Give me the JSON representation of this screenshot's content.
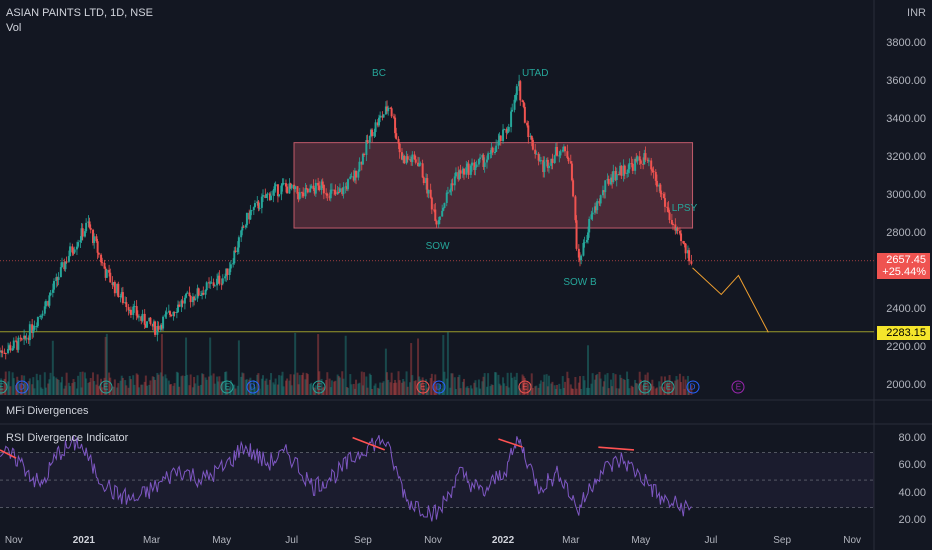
{
  "header": {
    "symbol_line": "ASIAN PAINTS LTD, 1D, NSE",
    "vol_label": "Vol"
  },
  "panes": {
    "mfi_label": "MFi Divergences",
    "rsi_label": "RSI Divergence Indicator"
  },
  "currency": "INR",
  "colors": {
    "up": "#26a69a",
    "down": "#ef5350",
    "rsi_line": "#7e57c2",
    "zone_fill": "#7a3b48",
    "projection": "#f0a030",
    "support": "#9a9a2a"
  },
  "markers": {
    "current_price": "2657.45",
    "current_change": "+25.44%",
    "support_price": "2283.15"
  },
  "chart_data": {
    "type": "candlestick",
    "title": "ASIAN PAINTS LTD, 1D, NSE",
    "ylim": [
      1950,
      3900
    ],
    "price_ticks": [
      "3800.00",
      "3600.00",
      "3400.00",
      "3200.00",
      "3000.00",
      "2800.00",
      "2600.00",
      "2400.00",
      "2200.00",
      "2000.00"
    ],
    "x_ticks": [
      {
        "date": "2020-11-01",
        "label": "Nov",
        "bold": false
      },
      {
        "date": "2021-01-01",
        "label": "2021",
        "bold": true
      },
      {
        "date": "2021-03-01",
        "label": "Mar",
        "bold": false
      },
      {
        "date": "2021-05-01",
        "label": "May",
        "bold": false
      },
      {
        "date": "2021-07-01",
        "label": "Jul",
        "bold": false
      },
      {
        "date": "2021-09-01",
        "label": "Sep",
        "bold": false
      },
      {
        "date": "2021-11-01",
        "label": "Nov",
        "bold": false
      },
      {
        "date": "2022-01-01",
        "label": "2022",
        "bold": true
      },
      {
        "date": "2022-03-01",
        "label": "Mar",
        "bold": false
      },
      {
        "date": "2022-05-01",
        "label": "May",
        "bold": false
      },
      {
        "date": "2022-07-01",
        "label": "Jul",
        "bold": false
      },
      {
        "date": "2022-09-01",
        "label": "Sep",
        "bold": false
      },
      {
        "date": "2022-11-01",
        "label": "Nov",
        "bold": false
      }
    ],
    "x_range": [
      "2020-10-20",
      "2022-11-20"
    ],
    "price_path": [
      [
        "2020-10-20",
        2180
      ],
      [
        "2020-11-10",
        2230
      ],
      [
        "2020-12-01",
        2450
      ],
      [
        "2020-12-20",
        2700
      ],
      [
        "2021-01-05",
        2850
      ],
      [
        "2021-01-20",
        2600
      ],
      [
        "2021-02-05",
        2450
      ],
      [
        "2021-02-20",
        2350
      ],
      [
        "2021-03-05",
        2300
      ],
      [
        "2021-03-25",
        2430
      ],
      [
        "2021-04-15",
        2500
      ],
      [
        "2021-05-05",
        2580
      ],
      [
        "2021-05-25",
        2900
      ],
      [
        "2021-06-10",
        3000
      ],
      [
        "2021-06-25",
        3050
      ],
      [
        "2021-07-10",
        3000
      ],
      [
        "2021-07-25",
        3050
      ],
      [
        "2021-08-10",
        3000
      ],
      [
        "2021-08-25",
        3100
      ],
      [
        "2021-09-10",
        3350
      ],
      [
        "2021-09-25",
        3480
      ],
      [
        "2021-10-05",
        3200
      ],
      [
        "2021-10-20",
        3180
      ],
      [
        "2021-11-05",
        2870
      ],
      [
        "2021-11-20",
        3100
      ],
      [
        "2021-12-05",
        3150
      ],
      [
        "2021-12-20",
        3200
      ],
      [
        "2022-01-05",
        3350
      ],
      [
        "2022-01-15",
        3580
      ],
      [
        "2022-01-25",
        3300
      ],
      [
        "2022-02-05",
        3150
      ],
      [
        "2022-02-20",
        3250
      ],
      [
        "2022-03-01",
        3200
      ],
      [
        "2022-03-08",
        2640
      ],
      [
        "2022-03-20",
        2900
      ],
      [
        "2022-04-05",
        3100
      ],
      [
        "2022-04-20",
        3150
      ],
      [
        "2022-05-05",
        3200
      ],
      [
        "2022-05-20",
        3000
      ],
      [
        "2022-06-01",
        2800
      ],
      [
        "2022-06-15",
        2660
      ]
    ],
    "annotations": [
      {
        "label": "BC",
        "date": "2021-09-15",
        "price": 3640
      },
      {
        "label": "UTAD",
        "date": "2022-01-29",
        "price": 3640
      },
      {
        "label": "SOW",
        "date": "2021-11-05",
        "price": 2730
      },
      {
        "label": "SOW B",
        "date": "2022-03-09",
        "price": 2540
      },
      {
        "label": "LPSY",
        "date": "2022-06-08",
        "price": 2930
      }
    ],
    "distribution_zone": {
      "start": "2021-07-03",
      "end": "2022-06-15",
      "top": 3280,
      "bottom": 2830
    },
    "projection": [
      [
        "2022-06-15",
        2620
      ],
      [
        "2022-07-10",
        2480
      ],
      [
        "2022-07-25",
        2580
      ],
      [
        "2022-08-20",
        2280
      ]
    ],
    "support_level": 2283.15,
    "events": [
      {
        "date": "2020-10-21",
        "letter": "E",
        "color": "#26a69a"
      },
      {
        "date": "2020-11-08",
        "letter": "D",
        "color": "#2962ff"
      },
      {
        "date": "2021-01-20",
        "letter": "E",
        "color": "#26a69a"
      },
      {
        "date": "2021-05-06",
        "letter": "E",
        "color": "#26a69a"
      },
      {
        "date": "2021-05-28",
        "letter": "D",
        "color": "#2962ff"
      },
      {
        "date": "2021-07-25",
        "letter": "E",
        "color": "#26a69a"
      },
      {
        "date": "2021-10-23",
        "letter": "E",
        "color": "#ef5350"
      },
      {
        "date": "2021-11-06",
        "letter": "D",
        "color": "#2962ff"
      },
      {
        "date": "2022-01-20",
        "letter": "E",
        "color": "#ef5350"
      },
      {
        "date": "2022-05-05",
        "letter": "E",
        "color": "#26a69a"
      },
      {
        "date": "2022-05-25",
        "letter": "E",
        "color": "#26a69a"
      },
      {
        "date": "2022-06-15",
        "letter": "D",
        "color": "#2962ff"
      },
      {
        "date": "2022-07-25",
        "letter": "E",
        "color": "#9c27b0"
      }
    ],
    "rsi": {
      "ylim": [
        15,
        88
      ],
      "ticks": [
        "80.00",
        "60.00",
        "40.00",
        "20.00"
      ],
      "upper_band": 70,
      "lower_band": 30,
      "mid_line": 50,
      "path": [
        [
          "2020-10-20",
          70
        ],
        [
          "2020-11-05",
          65
        ],
        [
          "2020-11-25",
          45
        ],
        [
          "2020-12-10",
          70
        ],
        [
          "2020-12-28",
          78
        ],
        [
          "2021-01-12",
          55
        ],
        [
          "2021-01-28",
          40
        ],
        [
          "2021-02-15",
          35
        ],
        [
          "2021-03-05",
          45
        ],
        [
          "2021-03-25",
          58
        ],
        [
          "2021-04-15",
          50
        ],
        [
          "2021-05-05",
          60
        ],
        [
          "2021-05-20",
          75
        ],
        [
          "2021-06-10",
          62
        ],
        [
          "2021-06-28",
          70
        ],
        [
          "2021-07-20",
          45
        ],
        [
          "2021-08-10",
          55
        ],
        [
          "2021-09-05",
          75
        ],
        [
          "2021-09-20",
          80
        ],
        [
          "2021-10-10",
          35
        ],
        [
          "2021-11-05",
          25
        ],
        [
          "2021-11-25",
          55
        ],
        [
          "2021-12-15",
          40
        ],
        [
          "2022-01-05",
          60
        ],
        [
          "2022-01-15",
          80
        ],
        [
          "2022-02-01",
          45
        ],
        [
          "2022-02-20",
          55
        ],
        [
          "2022-03-08",
          28
        ],
        [
          "2022-03-25",
          55
        ],
        [
          "2022-04-15",
          65
        ],
        [
          "2022-05-05",
          50
        ],
        [
          "2022-05-20",
          35
        ],
        [
          "2022-06-15",
          28
        ]
      ],
      "divergence_lines": [
        [
          [
            "2020-10-20",
            72
          ],
          [
            "2020-11-03",
            66
          ]
        ],
        [
          [
            "2021-08-23",
            81
          ],
          [
            "2021-09-20",
            72
          ]
        ],
        [
          [
            "2021-12-28",
            80
          ],
          [
            "2022-01-18",
            74
          ]
        ],
        [
          [
            "2022-03-25",
            74
          ],
          [
            "2022-04-25",
            72
          ]
        ]
      ]
    }
  }
}
